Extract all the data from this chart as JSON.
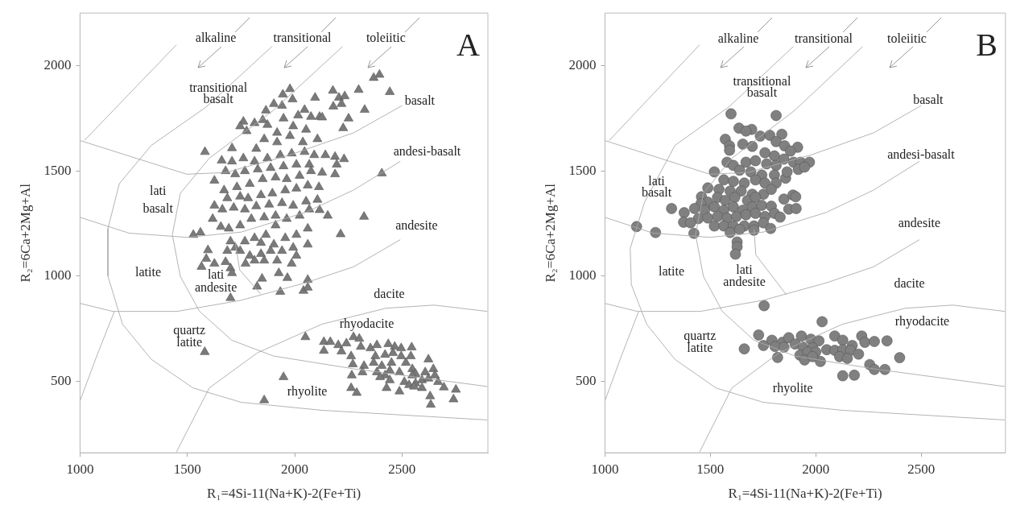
{
  "chart_data": [
    {
      "type": "scatter",
      "title": "A",
      "xlabel": "R₁=4Si-11(Na+K)-2(Fe+Ti)",
      "ylabel": "R₂=6Ca+2Mg+Al",
      "xlim": [
        1000,
        2900
      ],
      "ylim": [
        160,
        2250
      ],
      "xticks": [
        1000,
        1500,
        2000,
        2500
      ],
      "yticks": [
        500,
        1000,
        1500,
        2000
      ],
      "annotations": [
        "alkaline",
        "transitional",
        "toleiitic",
        "transitional",
        "basalt",
        "basalt",
        "andesi-basalt",
        "lati",
        "basalt",
        "andesite",
        "latite",
        "lati",
        "andesite",
        "dacite",
        "rhyodacite",
        "quartz",
        "latite",
        "rhyolite"
      ],
      "series": [
        {
          "type": "line",
          "color": "#aaaaaa",
          "x": [
            1020,
            1449
          ],
          "values": [
            1644,
            2099
          ]
        },
        {
          "type": "line",
          "color": "#aaaaaa",
          "x": [
            1000,
            1497,
            1677,
            1976,
            2275,
            2500
          ],
          "values": [
            1644,
            1484,
            1492,
            1575,
            1681,
            1810
          ]
        },
        {
          "type": "line",
          "color": "#aaaaaa",
          "x": [
            1894,
            1587,
            1332,
            1183,
            1130,
            1130,
            1198,
            1332,
            1527,
            1751,
            2126,
            2897
          ],
          "values": [
            2091,
            1803,
            1621,
            1439,
            1226,
            999,
            771,
            604,
            468,
            400,
            362,
            316
          ]
        },
        {
          "type": "line",
          "color": "#aaaaaa",
          "x": [
            2223,
            1901,
            1602,
            1467,
            1430,
            1467,
            1557,
            1707,
            1901,
            2275,
            2897
          ],
          "values": [
            2091,
            1788,
            1560,
            1393,
            1196,
            999,
            832,
            695,
            620,
            559,
            475
          ]
        },
        {
          "type": "line",
          "color": "#aaaaaa",
          "x": [
            1722,
            1744,
            1841
          ],
          "values": [
            1166,
            1029,
            915
          ]
        },
        {
          "type": "line",
          "color": "#aaaaaa",
          "x": [
            1000,
            1228,
            1497,
            1751,
            2051,
            2275,
            2492
          ],
          "values": [
            1279,
            1204,
            1184,
            1209,
            1303,
            1409,
            1545
          ]
        },
        {
          "type": "line",
          "color": "#aaaaaa",
          "x": [
            1000,
            1153,
            1452,
            1751,
            2051,
            2275,
            2492
          ],
          "values": [
            870,
            832,
            832,
            885,
            968,
            1044,
            1173
          ]
        },
        {
          "type": "line",
          "color": "#aaaaaa",
          "x": [
            1449,
            1602,
            1826,
            2126,
            2425,
            2650,
            2897
          ],
          "values": [
            164,
            468,
            635,
            771,
            847,
            862,
            832
          ]
        },
        {
          "type": "line",
          "color": "#aaaaaa",
          "x": [
            1000,
            1078,
            1160
          ],
          "values": [
            407,
            620,
            832
          ]
        },
        {
          "type": "scatter",
          "color": "#7a7a7a",
          "marker": "triangle",
          "x": [
            2395,
            2368,
            2443,
            2298,
            2326,
            2178,
            2206,
            2233,
            2180,
            2218,
            2251,
            2226,
            2095,
            1990,
            1978,
            1945,
            1941,
            2046,
            2016,
            2076,
            2116,
            2128,
            1903,
            1866,
            1851,
            1948,
            1993,
            2053,
            2106,
            2038,
            1978,
            1918,
            1873,
            1813,
            1761,
            1746,
            1776,
            1858,
            1918,
            1821,
            1708,
            1708,
            1761,
            1813,
            1873,
            1933,
            1986,
            2046,
            2091,
            2143,
            2188,
            2230,
            2196,
            2068,
            2008,
            1948,
            1888,
            1828,
            1768,
            1723,
            1678,
            1660,
            1582,
            1626,
            1671,
            1731,
            1791,
            1851,
            1911,
            1963,
            2023,
            2076,
            2128,
            2188,
            2406,
            2113,
            2061,
            2008,
            1956,
            1896,
            1843,
            1783,
            1746,
            1686,
            1626,
            1663,
            1716,
            1768,
            1821,
            1881,
            1941,
            1993,
            2053,
            2106,
            2116,
            2154,
            2323,
            2068,
            2023,
            1963,
            1911,
            1858,
            1798,
            1746,
            1693,
            1656,
            1618,
            1528,
            1561,
            1596,
            1566,
            1588,
            1626,
            1686,
            1701,
            1746,
            1791,
            1843,
            1888,
            1941,
            1993,
            2061,
            2061,
            2008,
            1956,
            1911,
            1866,
            1813,
            1768,
            2214,
            1701,
            1708,
            1771,
            1813,
            1858,
            1918,
            2008,
            1986,
            1926,
            1966,
            1848,
            1825,
            1933,
            2041,
            2061,
            2061,
            1701,
            1678,
            1723,
            1843,
            1903,
            2050,
            2136,
            2136,
            2166,
            2203,
            2241,
            2274,
            2301,
            2218,
            2263,
            2308,
            2353,
            2383,
            2436,
            2466,
            2496,
            2545,
            2376,
            2421,
            2458,
            2496,
            2541,
            2623,
            2271,
            2323,
            2368,
            2406,
            2451,
            2518,
            2266,
            2316,
            2383,
            2421,
            2443,
            2488,
            2548,
            2563,
            2608,
            2646,
            2653,
            2398,
            2443,
            2511,
            2533,
            2563,
            2593,
            2623,
            2668,
            2428,
            2488,
            2556,
            2593,
            2695,
            2751,
            2631,
            2740,
            2634,
            2263,
            2289,
            2548,
            1948,
            1858,
            1581
          ],
          "values": [
            1957,
            1942,
            1875,
            1885,
            1790,
            1881,
            1848,
            1855,
            1806,
            1818,
            1749,
            1703,
            1848,
            1840,
            1889,
            1863,
            1810,
            1790,
            1764,
            1757,
            1757,
            1754,
            1818,
            1787,
            1742,
            1749,
            1712,
            1696,
            1651,
            1636,
            1666,
            1681,
            1719,
            1727,
            1734,
            1712,
            1689,
            1651,
            1636,
            1605,
            1608,
            1545,
            1560,
            1545,
            1560,
            1575,
            1583,
            1590,
            1575,
            1575,
            1567,
            1556,
            1530,
            1530,
            1530,
            1522,
            1514,
            1507,
            1499,
            1484,
            1499,
            1549,
            1590,
            1454,
            1408,
            1423,
            1438,
            1461,
            1469,
            1461,
            1477,
            1499,
            1492,
            1484,
            1488,
            1423,
            1431,
            1416,
            1408,
            1393,
            1385,
            1370,
            1378,
            1370,
            1335,
            1317,
            1325,
            1317,
            1332,
            1340,
            1347,
            1335,
            1355,
            1363,
            1314,
            1287,
            1282,
            1317,
            1287,
            1272,
            1287,
            1279,
            1272,
            1241,
            1226,
            1234,
            1272,
            1196,
            1207,
            1123,
            1044,
            1082,
            1059,
            1120,
            1165,
            1120,
            1097,
            1105,
            1120,
            1120,
            1135,
            1150,
            1226,
            1196,
            1181,
            1241,
            1196,
            1181,
            1165,
            1199,
            1037,
            1014,
            1059,
            1074,
            1074,
            1074,
            1097,
            1059,
            1014,
            991,
            988,
            950,
            925,
            930,
            982,
            945,
            896,
            1067,
            1135,
            1158,
            1150,
            710,
            645,
            687,
            687,
            672,
            680,
            710,
            702,
            642,
            619,
            664,
            657,
            672,
            677,
            664,
            657,
            661,
            619,
            626,
            634,
            619,
            619,
            604,
            581,
            573,
            588,
            573,
            588,
            588,
            528,
            543,
            543,
            528,
            551,
            543,
            558,
            535,
            543,
            558,
            528,
            520,
            505,
            497,
            482,
            490,
            505,
            513,
            497,
            468,
            452,
            475,
            468,
            471,
            460,
            429,
            414,
            389,
            468,
            445,
            528,
            520,
            410,
            639
          ]
        }
      ]
    },
    {
      "type": "scatter",
      "title": "B",
      "xlabel": "R₁=4Si-11(Na+K)-2(Fe+Ti)",
      "ylabel": "R₂=6Ca+2Mg+Al",
      "xlim": [
        1000,
        2900
      ],
      "ylim": [
        160,
        2250
      ],
      "xticks": [
        1000,
        1500,
        2000,
        2500
      ],
      "yticks": [
        500,
        1000,
        1500,
        2000
      ],
      "annotations": [
        "alkaline",
        "transitional",
        "toleiitic",
        "transitional",
        "basalt",
        "basalt",
        "andesi-basalt",
        "lati",
        "basalt",
        "andesite",
        "latite",
        "lati",
        "andesite",
        "dacite",
        "rhyodacite",
        "quartz",
        "latite",
        "rhyolite"
      ],
      "series": [
        {
          "type": "line",
          "color": "#aaaaaa",
          "x": [
            1020,
            1449
          ],
          "values": [
            1644,
            2099
          ]
        },
        {
          "type": "line",
          "color": "#aaaaaa",
          "x": [
            1000,
            1497,
            1677,
            1976,
            2275,
            2500
          ],
          "values": [
            1644,
            1484,
            1492,
            1575,
            1681,
            1810
          ]
        },
        {
          "type": "line",
          "color": "#aaaaaa",
          "x": [
            1894,
            1587,
            1332,
            1188,
            1120,
            1125,
            1198,
            1332,
            1527,
            1751,
            2126,
            2897
          ],
          "values": [
            2091,
            1803,
            1621,
            1351,
            1132,
            960,
            771,
            604,
            468,
            400,
            362,
            316
          ]
        },
        {
          "type": "line",
          "color": "#aaaaaa",
          "x": [
            2223,
            1901,
            1602,
            1467,
            1430,
            1467,
            1557,
            1707,
            1901,
            2275,
            2897
          ],
          "values": [
            2091,
            1788,
            1560,
            1393,
            1196,
            999,
            832,
            695,
            620,
            559,
            475
          ]
        },
        {
          "type": "line",
          "color": "#aaaaaa",
          "x": [
            1707,
            1716,
            1860
          ],
          "values": [
            1222,
            1100,
            912
          ]
        },
        {
          "type": "line",
          "color": "#aaaaaa",
          "x": [
            1000,
            1228,
            1497,
            1751,
            2051,
            2275,
            2492
          ],
          "values": [
            1279,
            1204,
            1184,
            1209,
            1303,
            1409,
            1545
          ]
        },
        {
          "type": "line",
          "color": "#aaaaaa",
          "x": [
            1000,
            1153,
            1452,
            1751,
            2051,
            2275,
            2492
          ],
          "values": [
            870,
            832,
            832,
            885,
            968,
            1044,
            1173
          ]
        },
        {
          "type": "line",
          "color": "#aaaaaa",
          "x": [
            1449,
            1602,
            1826,
            2126,
            2425,
            2650,
            2897
          ],
          "values": [
            164,
            468,
            635,
            771,
            847,
            862,
            832
          ]
        },
        {
          "type": "line",
          "color": "#aaaaaa",
          "x": [
            1000,
            1078,
            1160
          ],
          "values": [
            407,
            620,
            832
          ]
        },
        {
          "type": "scatter",
          "color": "#808080",
          "marker": "circle",
          "x": [
            1598,
            1812,
            1636,
            1696,
            1669,
            1571,
            1591,
            1591,
            1654,
            1737,
            1782,
            1839,
            1812,
            1852,
            1914,
            1880,
            1699,
            1759,
            1804,
            1849,
            1895,
            1928,
            1970,
            1917,
            1947,
            1579,
            1609,
            1669,
            1714,
            1767,
            1812,
            1639,
            1692,
            1744,
            1804,
            1857,
            1864,
            1519,
            1564,
            1609,
            1661,
            1714,
            1759,
            1812,
            1488,
            1541,
            1594,
            1646,
            1699,
            1752,
            1849,
            1458,
            1488,
            1534,
            1571,
            1616,
            1676,
            1714,
            1789,
            1892,
            1905,
            1455,
            1425,
            1473,
            1519,
            1564,
            1609,
            1654,
            1699,
            1744,
            1789,
            1316,
            1376,
            1443,
            1488,
            1534,
            1579,
            1624,
            1669,
            1714,
            1759,
            1804,
            1831,
            1872,
            1907,
            1373,
            1406,
            1519,
            1564,
            1609,
            1661,
            1707,
            1752,
            1786,
            1150,
            1240,
            1422,
            1594,
            1639,
            1707,
            1627,
            1627,
            1619,
            1755,
            2030,
            1729,
            1792,
            1842,
            1872,
            1932,
            1977,
            2015,
            1752,
            1807,
            1849,
            1902,
            1940,
            1985,
            1661,
            1925,
            1962,
            2000,
            2052,
            2090,
            2128,
            2218,
            2233,
            2278,
            2338,
            2173,
            2090,
            2128,
            2165,
            2203,
            2113,
            2150,
            1819,
            1947,
            2022,
            2398,
            2256,
            2278,
            2328,
            2128,
            2183,
            1985
          ],
          "values": [
            1771,
            1763,
            1703,
            1697,
            1689,
            1650,
            1619,
            1598,
            1627,
            1665,
            1669,
            1674,
            1639,
            1619,
            1612,
            1594,
            1616,
            1586,
            1571,
            1556,
            1541,
            1541,
            1541,
            1507,
            1518,
            1541,
            1526,
            1541,
            1548,
            1533,
            1526,
            1503,
            1495,
            1480,
            1480,
            1465,
            1495,
            1495,
            1457,
            1450,
            1442,
            1457,
            1442,
            1442,
            1419,
            1412,
            1404,
            1404,
            1389,
            1389,
            1366,
            1377,
            1351,
            1374,
            1359,
            1374,
            1359,
            1374,
            1412,
            1385,
            1377,
            1344,
            1321,
            1313,
            1329,
            1313,
            1329,
            1313,
            1329,
            1336,
            1332,
            1321,
            1301,
            1273,
            1276,
            1283,
            1276,
            1283,
            1291,
            1298,
            1283,
            1298,
            1280,
            1318,
            1321,
            1256,
            1253,
            1238,
            1238,
            1238,
            1238,
            1238,
            1253,
            1226,
            1235,
            1207,
            1203,
            1207,
            1222,
            1218,
            1162,
            1139,
            1104,
            859,
            783,
            720,
            695,
            685,
            707,
            715,
            700,
            692,
            670,
            665,
            662,
            677,
            662,
            659,
            654,
            624,
            639,
            639,
            650,
            715,
            695,
            715,
            685,
            689,
            692,
            670,
            647,
            650,
            647,
            629,
            617,
            609,
            613,
            601,
            594,
            612,
            579,
            556,
            556,
            526,
            529,
            617
          ]
        }
      ]
    }
  ]
}
